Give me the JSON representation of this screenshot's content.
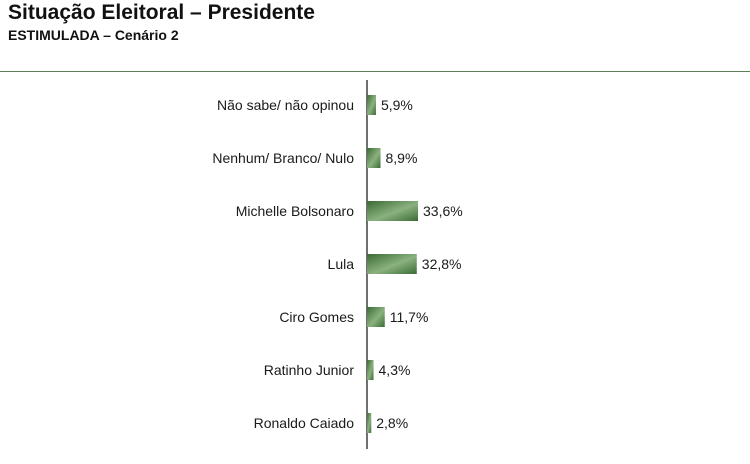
{
  "header": {
    "title": "Situação Eleitoral – Presidente",
    "subtitle": "ESTIMULADA – Cenário 2"
  },
  "colors": {
    "bar_dark": "#3a6b34",
    "bar_light": "#8ab17f",
    "axis": "#222222",
    "divider": "#5f7f5a"
  },
  "chart_data": {
    "type": "bar",
    "orientation": "horizontal",
    "title": "Situação Eleitoral – Presidente",
    "subtitle": "ESTIMULADA – Cenário 2",
    "categories": [
      "Não sabe/ não opinou",
      "Nenhum/ Branco/ Nulo",
      "Michelle Bolsonaro",
      "Lula",
      "Ciro Gomes",
      "Ratinho Junior",
      "Ronaldo Caiado"
    ],
    "values": [
      5.9,
      8.9,
      33.6,
      32.8,
      11.7,
      4.3,
      2.8
    ],
    "value_labels": [
      "5,9%",
      "8,9%",
      "33,6%",
      "32,8%",
      "11,7%",
      "4,3%",
      "2,8%"
    ],
    "unit": "%",
    "xlim": [
      0,
      100
    ],
    "grid": false,
    "legend": "none"
  }
}
